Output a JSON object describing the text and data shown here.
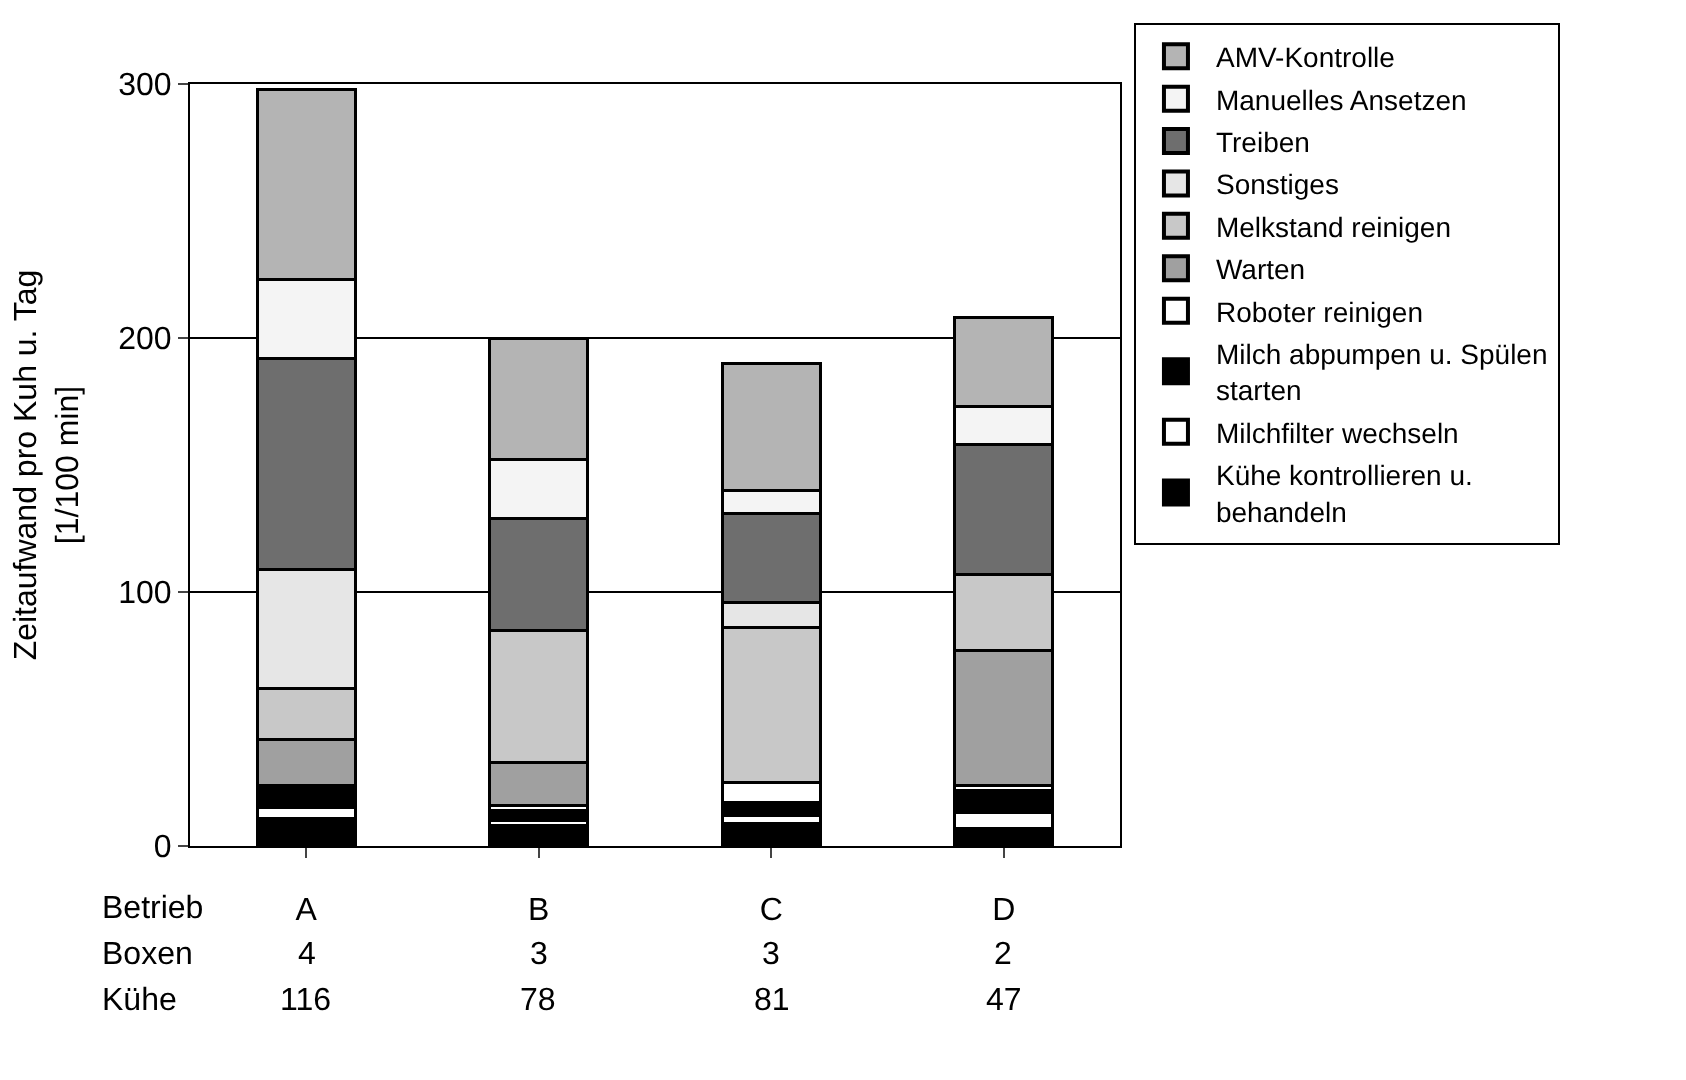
{
  "chart_data": {
    "type": "bar",
    "stacked": true,
    "categories": [
      "A",
      "B",
      "C",
      "D"
    ],
    "ylabel": "Zeitaufwand pro Kuh u. Tag [1/100 min]",
    "ylim": [
      0,
      300
    ],
    "yticks": [
      0,
      100,
      200,
      300
    ],
    "grid": "y",
    "legend": "right",
    "series": [
      {
        "name": "Kühe kontrollieren u. behandeln",
        "color": "#000000",
        "values": [
          11,
          8,
          9,
          7
        ]
      },
      {
        "name": "Milchfilter wechseln",
        "color": "#ffffff",
        "values": [
          4,
          2,
          3,
          6
        ]
      },
      {
        "name": "Milch abpumpen u. Spülen starten",
        "color": "#000000",
        "values": [
          8,
          4,
          5,
          9
        ]
      },
      {
        "name": "Roboter reinigen",
        "color": "#ffffff",
        "values": [
          1,
          2,
          8,
          2
        ]
      },
      {
        "name": "Warten",
        "color": "#a0a0a0",
        "values": [
          18,
          17,
          0,
          53
        ]
      },
      {
        "name": "Melkstand reinigen",
        "color": "#c8c8c8",
        "values": [
          20,
          52,
          61,
          30
        ]
      },
      {
        "name": "Sonstiges",
        "color": "#e6e6e6",
        "values": [
          47,
          0,
          10,
          0
        ]
      },
      {
        "name": "Treiben",
        "color": "#6e6e6e",
        "values": [
          83,
          44,
          35,
          51
        ]
      },
      {
        "name": "Manuelles Ansetzen",
        "color": "#f4f4f4",
        "values": [
          31,
          23,
          9,
          15
        ]
      },
      {
        "name": "AMV-Kontrolle",
        "color": "#b4b4b4",
        "values": [
          75,
          48,
          50,
          35
        ]
      }
    ],
    "annotations": [
      "Betrieb",
      "Boxen",
      "4",
      "3",
      "3",
      "2",
      "Kühe",
      "116",
      "78",
      "81",
      "47"
    ]
  }
}
